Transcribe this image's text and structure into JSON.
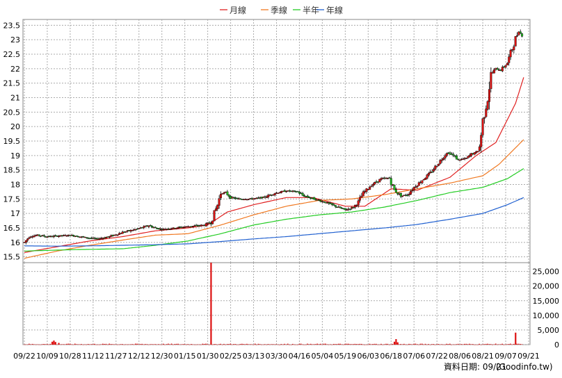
{
  "chart_data": {
    "type": "candlestick",
    "legend": [
      "月線",
      "季線",
      "半年",
      "年線"
    ],
    "colors": {
      "月線": "#e02020",
      "季線": "#f07820",
      "半年": "#22cc22",
      "年線": "#2060d0",
      "up": "#dd1111",
      "down": "#22bb22",
      "volume": "#dd1111"
    },
    "x_ticks": [
      "09/22",
      "10/09",
      "10/28",
      "11/12",
      "11/27",
      "12/12",
      "12/30",
      "01/15",
      "01/30",
      "02/25",
      "03/13",
      "03/30",
      "04/16",
      "05/04",
      "05/19",
      "06/03",
      "06/18",
      "07/06",
      "07/22",
      "08/06",
      "08/21",
      "09/07",
      "09/21"
    ],
    "price_axis": {
      "ticks": [
        15.5,
        16,
        16.5,
        17,
        17.5,
        18,
        18.5,
        19,
        19.5,
        20,
        20.5,
        21,
        21.5,
        22,
        22.5,
        23,
        23.5
      ],
      "range": [
        15.3,
        23.7
      ]
    },
    "volume_axis": {
      "ticks": [
        0,
        5000,
        10000,
        15000,
        20000,
        25000
      ],
      "tick_labels": [
        "0",
        "5,000",
        "10,000",
        "15,000",
        "20,000",
        "25,000"
      ],
      "range": [
        0,
        28000
      ]
    },
    "price_path": [
      [
        0,
        16
      ],
      [
        6,
        16.2
      ],
      [
        16,
        16.25
      ],
      [
        28,
        16.2
      ],
      [
        40,
        16.22
      ],
      [
        56,
        16.25
      ],
      [
        72,
        16.18
      ],
      [
        88,
        16.12
      ],
      [
        104,
        16.2
      ],
      [
        120,
        16.35
      ],
      [
        136,
        16.45
      ],
      [
        152,
        16.58
      ],
      [
        160,
        16.5
      ],
      [
        168,
        16.45
      ],
      [
        184,
        16.5
      ],
      [
        200,
        16.55
      ],
      [
        212,
        16.58
      ],
      [
        220,
        16.6
      ],
      [
        228,
        16.7
      ],
      [
        232,
        17
      ],
      [
        236,
        17.3
      ],
      [
        240,
        17.7
      ],
      [
        246,
        17.72
      ],
      [
        252,
        17.55
      ],
      [
        262,
        17.5
      ],
      [
        276,
        17.5
      ],
      [
        292,
        17.55
      ],
      [
        306,
        17.7
      ],
      [
        320,
        17.78
      ],
      [
        334,
        17.75
      ],
      [
        340,
        17.62
      ],
      [
        354,
        17.5
      ],
      [
        368,
        17.38
      ],
      [
        380,
        17.25
      ],
      [
        392,
        17.12
      ],
      [
        402,
        17.22
      ],
      [
        408,
        17.4
      ],
      [
        414,
        17.7
      ],
      [
        424,
        17.98
      ],
      [
        436,
        18.2
      ],
      [
        446,
        18.22
      ],
      [
        452,
        17.8
      ],
      [
        460,
        17.6
      ],
      [
        468,
        17.65
      ],
      [
        476,
        17.9
      ],
      [
        486,
        18.15
      ],
      [
        496,
        18.4
      ],
      [
        506,
        18.75
      ],
      [
        516,
        19.1
      ],
      [
        522,
        19.05
      ],
      [
        530,
        18.85
      ],
      [
        540,
        18.9
      ],
      [
        546,
        19.05
      ],
      [
        552,
        19.1
      ],
      [
        556,
        19.3
      ],
      [
        560,
        20.2
      ],
      [
        566,
        21
      ],
      [
        570,
        21.8
      ],
      [
        576,
        22
      ],
      [
        582,
        21.95
      ],
      [
        590,
        22.2
      ],
      [
        596,
        22.7
      ],
      [
        600,
        23.05
      ],
      [
        604,
        23.3
      ],
      [
        608,
        23.15
      ]
    ],
    "ma_month": [
      [
        0,
        15.65
      ],
      [
        40,
        15.85
      ],
      [
        80,
        16.05
      ],
      [
        120,
        16.2
      ],
      [
        160,
        16.4
      ],
      [
        200,
        16.5
      ],
      [
        224,
        16.6
      ],
      [
        248,
        17.05
      ],
      [
        280,
        17.3
      ],
      [
        320,
        17.55
      ],
      [
        352,
        17.55
      ],
      [
        392,
        17.25
      ],
      [
        416,
        17.25
      ],
      [
        448,
        17.85
      ],
      [
        480,
        17.8
      ],
      [
        520,
        18.25
      ],
      [
        552,
        19.0
      ],
      [
        576,
        19.45
      ],
      [
        600,
        20.8
      ],
      [
        610,
        21.7
      ]
    ],
    "ma_quarter": [
      [
        0,
        15.45
      ],
      [
        40,
        15.7
      ],
      [
        80,
        15.9
      ],
      [
        120,
        16.08
      ],
      [
        160,
        16.25
      ],
      [
        200,
        16.3
      ],
      [
        240,
        16.6
      ],
      [
        280,
        16.95
      ],
      [
        320,
        17.25
      ],
      [
        360,
        17.45
      ],
      [
        400,
        17.5
      ],
      [
        440,
        17.65
      ],
      [
        480,
        17.85
      ],
      [
        520,
        18.05
      ],
      [
        560,
        18.3
      ],
      [
        580,
        18.7
      ],
      [
        610,
        19.55
      ]
    ],
    "ma_half": [
      [
        0,
        15.7
      ],
      [
        60,
        15.75
      ],
      [
        120,
        15.78
      ],
      [
        160,
        15.9
      ],
      [
        200,
        16.05
      ],
      [
        240,
        16.3
      ],
      [
        280,
        16.6
      ],
      [
        320,
        16.8
      ],
      [
        360,
        16.95
      ],
      [
        400,
        17.05
      ],
      [
        440,
        17.22
      ],
      [
        480,
        17.45
      ],
      [
        520,
        17.72
      ],
      [
        560,
        17.9
      ],
      [
        590,
        18.2
      ],
      [
        610,
        18.55
      ]
    ],
    "ma_year": [
      [
        0,
        15.88
      ],
      [
        40,
        15.87
      ],
      [
        80,
        15.88
      ],
      [
        120,
        15.9
      ],
      [
        160,
        15.92
      ],
      [
        200,
        15.95
      ],
      [
        240,
        16.03
      ],
      [
        280,
        16.12
      ],
      [
        320,
        16.2
      ],
      [
        360,
        16.3
      ],
      [
        400,
        16.4
      ],
      [
        440,
        16.5
      ],
      [
        480,
        16.62
      ],
      [
        520,
        16.8
      ],
      [
        560,
        17.0
      ],
      [
        590,
        17.3
      ],
      [
        610,
        17.55
      ]
    ],
    "volume_spikes": [
      [
        34,
        1000
      ],
      [
        36,
        1400
      ],
      [
        38,
        900
      ],
      [
        42,
        600
      ],
      [
        228,
        29000
      ],
      [
        452,
        1000
      ],
      [
        454,
        1900
      ],
      [
        456,
        800
      ],
      [
        589,
        700
      ],
      [
        600,
        4100
      ],
      [
        603,
        900
      ]
    ]
  },
  "source_note": "資料日期: 09/21",
  "source_site": "(Goodinfo.tw)"
}
